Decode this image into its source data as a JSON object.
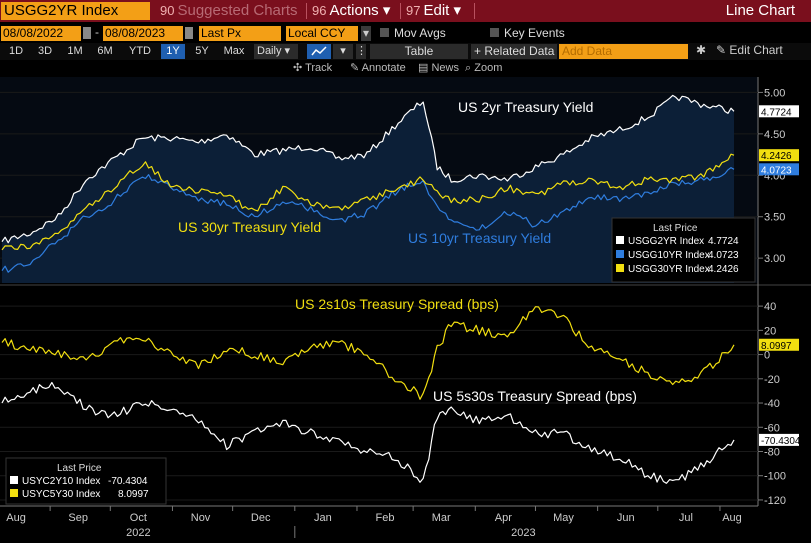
{
  "toolbar": {
    "ticker": "USGG2YR Index",
    "suggested": {
      "num": "90",
      "label": "Suggested Charts"
    },
    "actions": {
      "num": "96",
      "label": "Actions"
    },
    "edit": {
      "num": "97",
      "label": "Edit"
    },
    "window_title": "Line Chart",
    "start_date": "08/08/2022",
    "end_date": "08/08/2023",
    "field": "Last Px",
    "currency": "Local CCY",
    "mov_avgs": "Mov Avgs",
    "key_events": "Key Events",
    "periods": [
      "1D",
      "3D",
      "1M",
      "6M",
      "YTD",
      "1Y",
      "5Y",
      "Max"
    ],
    "selected_period": "1Y",
    "frequency": "Daily",
    "table": "Table",
    "related": "+ Related Data",
    "add_data_placeholder": "Add Data",
    "edit_chart": "Edit Chart",
    "annotations": [
      "Track",
      "Annotate",
      "News",
      "Zoom"
    ]
  },
  "colors": {
    "white": "#ffffff",
    "blue": "#2f7dde",
    "yellow": "#f2df10",
    "title_bar": "#7a0f1d",
    "field": "#f39f16",
    "panel_fill": "#0c1f37"
  },
  "chart_data": [
    {
      "type": "line",
      "ylim": [
        2.7,
        5.15
      ],
      "yticks": [
        "5.00",
        "4.50",
        "4.00",
        "3.50",
        "3.00"
      ],
      "yticks_values": [
        5.0,
        4.5,
        4.0,
        3.5,
        3.0
      ],
      "x": [
        "2022-08-08",
        "2022-08-22",
        "2022-09-05",
        "2022-09-19",
        "2022-10-03",
        "2022-10-17",
        "2022-10-31",
        "2022-11-14",
        "2022-11-28",
        "2022-12-12",
        "2022-12-26",
        "2023-01-09",
        "2023-01-23",
        "2023-02-06",
        "2023-02-20",
        "2023-03-06",
        "2023-03-13",
        "2023-03-20",
        "2023-04-03",
        "2023-04-17",
        "2023-05-01",
        "2023-05-15",
        "2023-05-29",
        "2023-06-12",
        "2023-06-26",
        "2023-07-10",
        "2023-07-24",
        "2023-08-08"
      ],
      "series": [
        {
          "name": "USGG2YR Index",
          "color": "#ffffff",
          "last": "4.7724",
          "values": [
            3.2,
            3.3,
            3.5,
            3.95,
            4.2,
            4.45,
            4.45,
            4.4,
            4.5,
            4.25,
            4.3,
            4.35,
            4.2,
            4.25,
            4.6,
            4.9,
            4.1,
            3.95,
            4.0,
            3.95,
            4.1,
            4.25,
            4.45,
            4.55,
            4.7,
            4.95,
            4.85,
            4.7724
          ]
        },
        {
          "name": "USGG10YR Index",
          "color": "#2f7dde",
          "last": "4.0723",
          "values": [
            2.85,
            2.95,
            3.2,
            3.5,
            3.7,
            4.0,
            3.85,
            3.7,
            3.65,
            3.5,
            3.7,
            3.6,
            3.45,
            3.55,
            3.8,
            3.95,
            3.6,
            3.45,
            3.35,
            3.55,
            3.4,
            3.55,
            3.75,
            3.7,
            3.8,
            3.9,
            3.95,
            4.0723
          ]
        },
        {
          "name": "USGG30YR Index",
          "color": "#f2df10",
          "last": "4.2426",
          "values": [
            3.1,
            3.15,
            3.3,
            3.6,
            3.85,
            4.15,
            3.9,
            3.8,
            3.75,
            3.55,
            3.85,
            3.65,
            3.6,
            3.7,
            3.85,
            3.95,
            3.8,
            3.7,
            3.7,
            3.85,
            3.75,
            3.9,
            3.95,
            3.85,
            3.95,
            3.95,
            4.0,
            4.2426
          ]
        }
      ],
      "annotations": [
        "US 2yr Treasury Yield",
        "US 30yr Treasury Yield",
        "US 10yr Treasury Yield"
      ],
      "legend": {
        "title": "Last Price",
        "position": "bottom-right"
      }
    },
    {
      "type": "line",
      "ylim": [
        -125,
        50
      ],
      "yticks": [
        "40",
        "20",
        "0",
        "-20",
        "-40",
        "-60",
        "-80",
        "-100",
        "-120"
      ],
      "yticks_values": [
        40,
        20,
        0,
        -20,
        -40,
        -60,
        -80,
        -100,
        -120
      ],
      "x": [
        "2022-08-08",
        "2022-08-22",
        "2022-09-05",
        "2022-09-19",
        "2022-10-03",
        "2022-10-17",
        "2022-10-31",
        "2022-11-14",
        "2022-11-28",
        "2022-12-12",
        "2022-12-26",
        "2023-01-09",
        "2023-01-23",
        "2023-02-06",
        "2023-02-20",
        "2023-03-06",
        "2023-03-13",
        "2023-03-20",
        "2023-04-03",
        "2023-04-17",
        "2023-05-01",
        "2023-05-15",
        "2023-05-29",
        "2023-06-12",
        "2023-06-26",
        "2023-07-10",
        "2023-07-24",
        "2023-08-08"
      ],
      "series": [
        {
          "name": "USYC2Y10 Index",
          "color": "#ffffff",
          "last": "-70.4304",
          "values": [
            -40,
            -30,
            -25,
            -45,
            -50,
            -40,
            -45,
            -55,
            -75,
            -65,
            -55,
            -65,
            -70,
            -80,
            -85,
            -105,
            -50,
            -45,
            -55,
            -50,
            -65,
            -65,
            -80,
            -85,
            -100,
            -105,
            -90,
            -70.4304
          ]
        },
        {
          "name": "USYC5Y30 Index",
          "color": "#f2df10",
          "last": "8.0997",
          "values": [
            10,
            5,
            0,
            -5,
            10,
            15,
            0,
            -10,
            5,
            0,
            -5,
            5,
            10,
            0,
            -20,
            -35,
            5,
            25,
            20,
            15,
            40,
            30,
            5,
            -5,
            -15,
            -25,
            -15,
            8.0997
          ]
        }
      ],
      "annotations": [
        "US 2s10s Treasury Spread (bps)",
        "US 5s30s Treasury Spread (bps)"
      ],
      "legend": {
        "title": "Last Price",
        "position": "bottom-left"
      }
    }
  ],
  "x_axis": {
    "months": [
      "Aug",
      "Sep",
      "Oct",
      "Nov",
      "Dec",
      "Jan",
      "Feb",
      "Mar",
      "Apr",
      "May",
      "Jun",
      "Jul",
      "Aug"
    ],
    "years": [
      "2022",
      "2023"
    ]
  }
}
